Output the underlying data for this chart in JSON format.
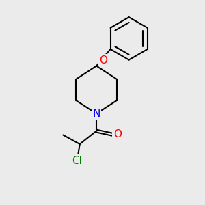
{
  "background_color": "#ebebeb",
  "bond_color": "#000000",
  "bond_width": 1.5,
  "atom_colors": {
    "O": "#ff0000",
    "N": "#0000ff",
    "Cl": "#008000",
    "C": "#000000"
  },
  "font_size_atoms": 11,
  "font_size_cl": 11
}
